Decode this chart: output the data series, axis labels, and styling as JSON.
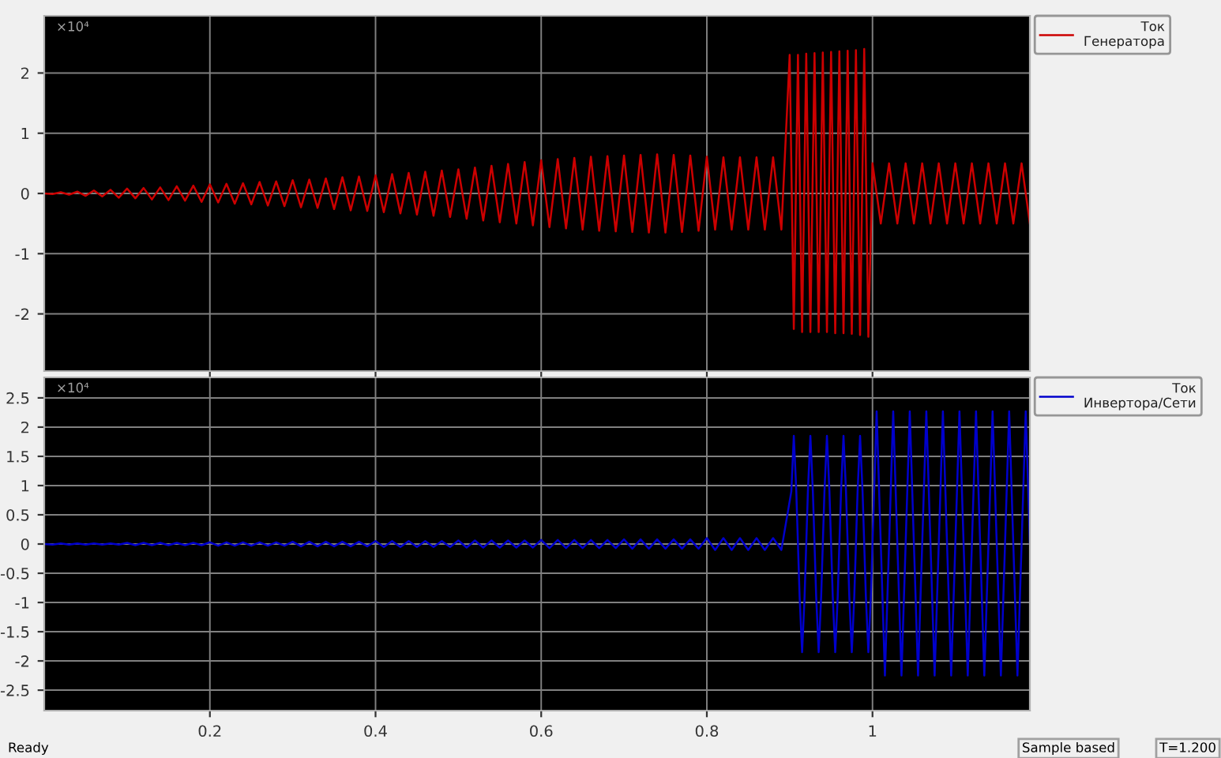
{
  "chart_data": [
    {
      "type": "line",
      "xlim": [
        0,
        1.19
      ],
      "ylim": [
        -2.95,
        2.95
      ],
      "xticks": [
        0.2,
        0.4,
        0.6,
        0.8,
        1
      ],
      "yticks": [
        -2,
        -1,
        0,
        1,
        2
      ],
      "grid": true,
      "legend": "top right",
      "tick_labels": "y",
      "annotations": [
        "×10⁴"
      ],
      "series": [
        {
          "name": "Ток\nГенератора",
          "color": "#cc0000",
          "x": [
            0,
            0.01,
            0.02,
            0.03,
            0.04,
            0.05,
            0.06,
            0.07,
            0.08,
            0.09,
            0.1,
            0.11,
            0.12,
            0.13,
            0.14,
            0.15,
            0.16,
            0.17,
            0.18,
            0.19,
            0.2,
            0.21,
            0.22,
            0.23,
            0.24,
            0.25,
            0.26,
            0.27,
            0.28,
            0.29,
            0.3,
            0.31,
            0.32,
            0.33,
            0.34,
            0.35,
            0.36,
            0.37,
            0.38,
            0.39,
            0.4,
            0.41,
            0.42,
            0.43,
            0.44,
            0.45,
            0.46,
            0.47,
            0.48,
            0.49,
            0.5,
            0.51,
            0.52,
            0.53,
            0.54,
            0.55,
            0.56,
            0.57,
            0.58,
            0.59,
            0.6,
            0.61,
            0.62,
            0.63,
            0.64,
            0.65,
            0.66,
            0.67,
            0.68,
            0.69,
            0.7,
            0.71,
            0.72,
            0.73,
            0.74,
            0.75,
            0.76,
            0.77,
            0.78,
            0.79,
            0.8,
            0.81,
            0.82,
            0.83,
            0.84,
            0.85,
            0.86,
            0.87,
            0.88,
            0.89,
            0.9,
            0.905,
            0.91,
            0.915,
            0.92,
            0.925,
            0.93,
            0.935,
            0.94,
            0.945,
            0.95,
            0.955,
            0.96,
            0.965,
            0.97,
            0.975,
            0.98,
            0.985,
            0.99,
            0.995,
            1.0,
            1.01,
            1.02,
            1.03,
            1.04,
            1.05,
            1.06,
            1.07,
            1.08,
            1.09,
            1.1,
            1.11,
            1.12,
            1.13,
            1.14,
            1.15,
            1.16,
            1.17,
            1.18,
            1.19
          ],
          "values": [
            0,
            -0.01,
            0.02,
            -0.02,
            0.03,
            -0.04,
            0.05,
            -0.05,
            0.06,
            -0.07,
            0.08,
            -0.08,
            0.09,
            -0.1,
            0.1,
            -0.11,
            0.12,
            -0.12,
            0.13,
            -0.14,
            0.15,
            -0.15,
            0.16,
            -0.17,
            0.17,
            -0.18,
            0.19,
            -0.2,
            0.2,
            -0.21,
            0.22,
            -0.23,
            0.23,
            -0.24,
            0.25,
            -0.26,
            0.27,
            -0.28,
            0.28,
            -0.29,
            0.3,
            -0.31,
            0.32,
            -0.33,
            0.34,
            -0.35,
            0.36,
            -0.37,
            0.38,
            -0.39,
            0.4,
            -0.42,
            0.43,
            -0.45,
            0.46,
            -0.48,
            0.49,
            -0.5,
            0.52,
            -0.53,
            0.55,
            -0.56,
            0.57,
            -0.58,
            0.59,
            -0.6,
            0.61,
            -0.62,
            0.62,
            -0.63,
            0.63,
            -0.64,
            0.64,
            -0.65,
            0.65,
            -0.65,
            0.64,
            -0.64,
            0.63,
            -0.62,
            0.61,
            -0.6,
            0.6,
            -0.6,
            0.6,
            -0.6,
            0.6,
            -0.6,
            0.6,
            -0.6,
            2.3,
            -2.25,
            2.3,
            -2.3,
            2.32,
            -2.3,
            2.33,
            -2.3,
            2.34,
            -2.3,
            2.35,
            -2.32,
            2.36,
            -2.32,
            2.37,
            -2.33,
            2.38,
            -2.35,
            2.4,
            -2.38,
            0.5,
            -0.5,
            0.5,
            -0.5,
            0.5,
            -0.5,
            0.5,
            -0.5,
            0.5,
            -0.5,
            0.5,
            -0.5,
            0.5,
            -0.5,
            0.5,
            -0.5,
            0.5,
            -0.5,
            0.5,
            -0.5
          ]
        }
      ]
    },
    {
      "type": "line",
      "xlim": [
        0,
        1.19
      ],
      "ylim": [
        -2.85,
        2.85
      ],
      "xticks": [
        0.2,
        0.4,
        0.6,
        0.8,
        1
      ],
      "yticks": [
        -2.5,
        -2,
        -1.5,
        -1,
        -0.5,
        0,
        0.5,
        1,
        1.5,
        2,
        2.5
      ],
      "grid": true,
      "legend": "top right",
      "annotations": [
        "×10⁴",
        "Ready",
        "Sample based",
        "T=1.200"
      ],
      "series": [
        {
          "name": "Ток\nИнвертора/Сети",
          "color": "#0000cc",
          "x": [
            0,
            0.01,
            0.02,
            0.03,
            0.04,
            0.05,
            0.06,
            0.07,
            0.08,
            0.09,
            0.1,
            0.11,
            0.12,
            0.13,
            0.14,
            0.15,
            0.16,
            0.17,
            0.18,
            0.19,
            0.2,
            0.21,
            0.22,
            0.23,
            0.24,
            0.25,
            0.26,
            0.27,
            0.28,
            0.29,
            0.3,
            0.31,
            0.32,
            0.33,
            0.34,
            0.35,
            0.36,
            0.37,
            0.38,
            0.39,
            0.4,
            0.41,
            0.42,
            0.43,
            0.44,
            0.45,
            0.46,
            0.47,
            0.48,
            0.49,
            0.5,
            0.51,
            0.52,
            0.53,
            0.54,
            0.55,
            0.56,
            0.57,
            0.58,
            0.59,
            0.6,
            0.61,
            0.62,
            0.63,
            0.64,
            0.65,
            0.66,
            0.67,
            0.68,
            0.69,
            0.7,
            0.71,
            0.72,
            0.73,
            0.74,
            0.75,
            0.76,
            0.77,
            0.78,
            0.79,
            0.8,
            0.81,
            0.82,
            0.83,
            0.84,
            0.85,
            0.86,
            0.87,
            0.88,
            0.89,
            0.902,
            0.905,
            0.908,
            0.912,
            0.915,
            0.918,
            0.922,
            0.925,
            0.928,
            0.932,
            0.935,
            0.938,
            0.942,
            0.945,
            0.948,
            0.952,
            0.955,
            0.958,
            0.962,
            0.965,
            0.968,
            0.972,
            0.975,
            0.978,
            0.982,
            0.985,
            0.988,
            0.992,
            0.995,
            0.998,
            1.0,
            1.005,
            1.01,
            1.015,
            1.02,
            1.025,
            1.03,
            1.035,
            1.04,
            1.045,
            1.05,
            1.055,
            1.06,
            1.065,
            1.07,
            1.075,
            1.08,
            1.085,
            1.09,
            1.095,
            1.1,
            1.105,
            1.11,
            1.115,
            1.12,
            1.125,
            1.13,
            1.135,
            1.14,
            1.145,
            1.15,
            1.155,
            1.16,
            1.165,
            1.17,
            1.175,
            1.18,
            1.185,
            1.19
          ],
          "values": [
            0,
            -0.01,
            0.01,
            -0.01,
            0.01,
            -0.01,
            0.01,
            -0.01,
            0.01,
            -0.01,
            0.02,
            -0.02,
            0.02,
            -0.02,
            0.02,
            -0.02,
            0.02,
            -0.02,
            0.02,
            -0.02,
            0.03,
            -0.03,
            0.03,
            -0.03,
            0.03,
            -0.03,
            0.03,
            -0.03,
            0.03,
            -0.03,
            0.04,
            -0.04,
            0.04,
            -0.04,
            0.04,
            -0.04,
            0.04,
            -0.04,
            0.04,
            -0.04,
            0.05,
            -0.05,
            0.05,
            -0.05,
            0.05,
            -0.05,
            0.05,
            -0.05,
            0.05,
            -0.05,
            0.06,
            -0.06,
            0.06,
            -0.06,
            0.06,
            -0.06,
            0.06,
            -0.06,
            0.06,
            -0.06,
            0.07,
            -0.07,
            0.07,
            -0.07,
            0.07,
            -0.07,
            0.07,
            -0.07,
            0.07,
            -0.07,
            0.08,
            -0.08,
            0.08,
            -0.08,
            0.08,
            -0.08,
            0.08,
            -0.08,
            0.08,
            -0.08,
            0.1,
            -0.1,
            0.1,
            -0.1,
            0.1,
            -0.1,
            0.1,
            -0.1,
            0.1,
            -0.1,
            0.9,
            1.85,
            0.9,
            -0.9,
            -1.85,
            -0.9,
            0.9,
            1.85,
            0.9,
            -0.9,
            -1.85,
            -0.9,
            0.9,
            1.85,
            0.9,
            -0.9,
            -1.85,
            -0.9,
            0.9,
            1.85,
            0.9,
            -0.9,
            -1.85,
            -0.9,
            0.9,
            1.85,
            0.9,
            -0.9,
            -1.85,
            -0.9,
            0,
            2.27,
            0,
            -2.25,
            0,
            2.27,
            0,
            -2.25,
            0,
            2.27,
            0,
            -2.25,
            0,
            2.27,
            0,
            -2.25,
            0,
            2.27,
            0,
            -2.25,
            0,
            2.27,
            0,
            -2.25,
            0,
            2.27,
            0,
            -2.25,
            0,
            2.27,
            0,
            -2.25,
            0,
            2.27,
            0,
            -2.25,
            0,
            2.27,
            0
          ]
        }
      ]
    }
  ]
}
